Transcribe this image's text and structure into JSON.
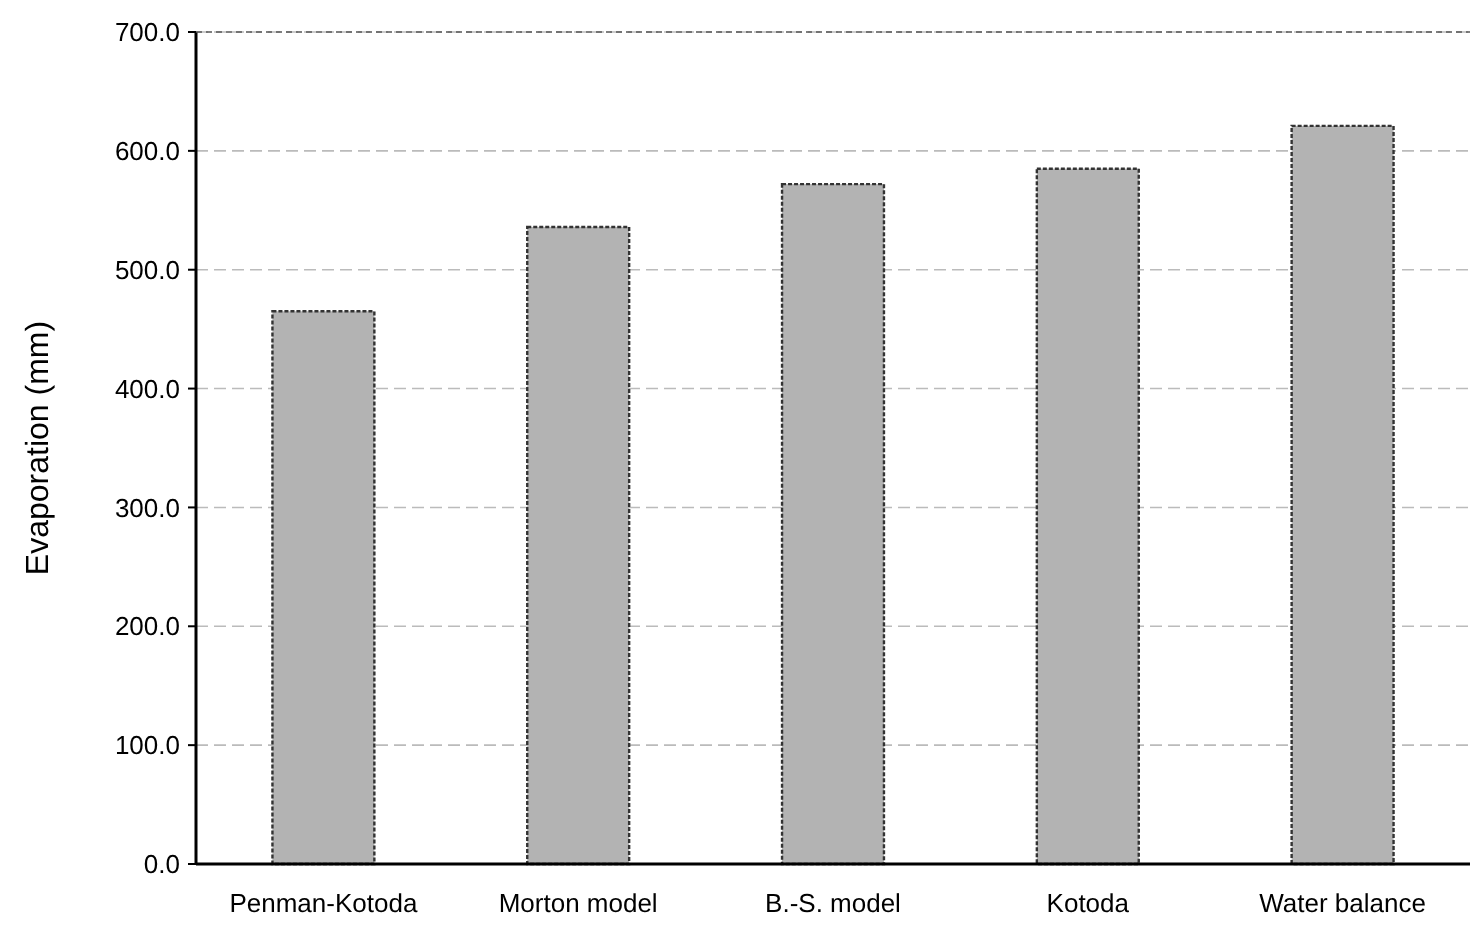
{
  "chart_data": {
    "type": "bar",
    "ylabel": "Evaporation (mm)",
    "categories": [
      "Penman-Kotoda",
      "Morton model",
      "B.-S. model",
      "Kotoda",
      "Water balance"
    ],
    "values": [
      465,
      536,
      572,
      585,
      621
    ],
    "color": "#b3b3b3",
    "ylim": [
      0,
      700
    ],
    "yticks": [
      {
        "value": 0,
        "label": "0.0"
      },
      {
        "value": 100,
        "label": "100.0"
      },
      {
        "value": 200,
        "label": "200.0"
      },
      {
        "value": 300,
        "label": "300.0"
      },
      {
        "value": 400,
        "label": "400.0"
      },
      {
        "value": 500,
        "label": "500.0"
      },
      {
        "value": 600,
        "label": "600.0"
      },
      {
        "value": 700,
        "label": "700.0"
      }
    ],
    "grid": "y"
  }
}
